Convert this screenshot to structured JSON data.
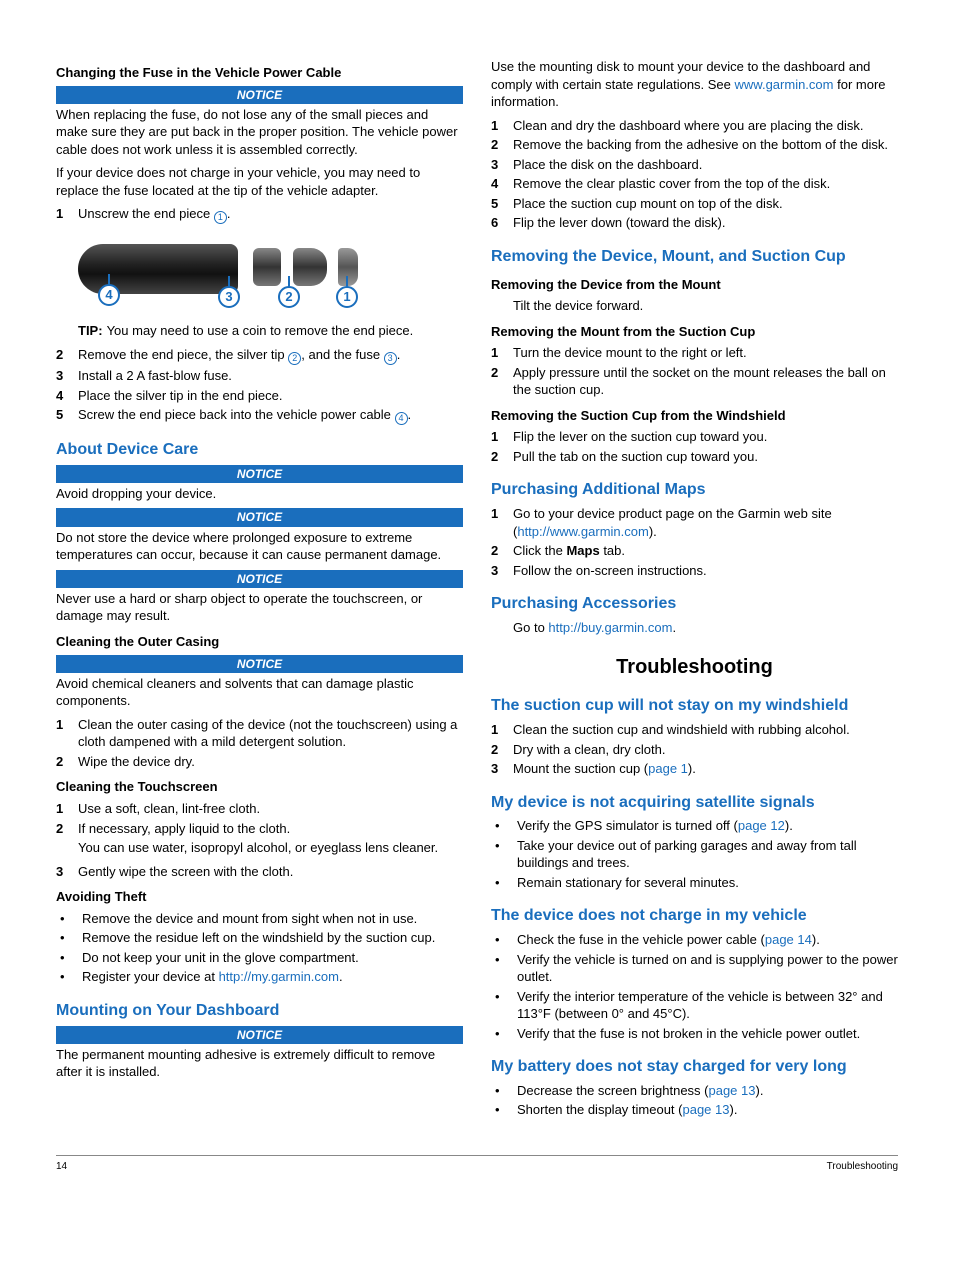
{
  "colors": {
    "accent": "#1a6ebd",
    "text": "#000000",
    "bg": "#ffffff"
  },
  "left": {
    "fuse": {
      "title": "Changing the Fuse in the Vehicle Power Cable",
      "notice_label": "NOTICE",
      "notice_text": "When replacing the fuse, do not lose any of the small pieces and make sure they are put back in the proper position. The vehicle power cable does not work unless it is assembled correctly.",
      "intro": "If your device does not charge in your vehicle, you may need to replace the fuse located at the tip of the vehicle adapter.",
      "step1": "Unscrew the end piece ",
      "tip_label": "TIP:",
      "tip_text": "You may need to use a coin to remove the end piece.",
      "step2a": "Remove the end piece, the silver tip ",
      "step2b": ", and the fuse ",
      "step3": "Install a 2 A fast-blow fuse.",
      "step4": "Place the silver tip in the end piece.",
      "step5a": "Screw the end piece back into the vehicle power cable "
    },
    "care": {
      "title": "About Device Care",
      "n1": "Avoid dropping your device.",
      "n2": "Do not store the device where prolonged exposure to extreme temperatures can occur, because it can cause permanent damage.",
      "n3": "Never use a hard or sharp object to operate the touchscreen, or damage may result."
    },
    "outer": {
      "title": "Cleaning the Outer Casing",
      "notice": "Avoid chemical cleaners and solvents that can damage plastic components.",
      "s1": "Clean the outer casing of the device (not the touchscreen) using a cloth dampened with a mild detergent solution.",
      "s2": "Wipe the device dry."
    },
    "touch": {
      "title": "Cleaning the Touchscreen",
      "s1": "Use a soft, clean, lint-free cloth.",
      "s2a": "If necessary, apply liquid to the cloth.",
      "s2b": "You can use water, isopropyl alcohol, or eyeglass lens cleaner.",
      "s3": "Gently wipe the screen with the cloth."
    },
    "theft": {
      "title": "Avoiding Theft",
      "b1": "Remove the device and mount from sight when not in use.",
      "b2": "Remove the residue left on the windshield by the suction cup.",
      "b3": "Do not keep your unit in the glove compartment.",
      "b4a": "Register your device at ",
      "b4link": "http://my.garmin.com"
    },
    "dash": {
      "title": "Mounting on Your Dashboard",
      "notice": "The permanent mounting adhesive is extremely difficult to remove after it is installed."
    }
  },
  "right": {
    "dash_cont": {
      "p1a": "Use the mounting disk to mount your device to the dashboard and comply with certain state regulations. See ",
      "p1link": "www.garmin.com",
      "p1b": " for more information.",
      "s1": "Clean and dry the dashboard where you are placing the disk.",
      "s2": "Remove the backing from the adhesive on the bottom of the disk.",
      "s3": "Place the disk on the dashboard.",
      "s4": "Remove the clear plastic cover from the top of the disk.",
      "s5": "Place the suction cup mount on top of the disk.",
      "s6": "Flip the lever down (toward the disk)."
    },
    "remove": {
      "title": "Removing the Device, Mount, and Suction Cup",
      "sub1": "Removing the Device from the Mount",
      "sub1t": "Tilt the device forward.",
      "sub2": "Removing the Mount from the Suction Cup",
      "sub2s1": "Turn the device mount to the right or left.",
      "sub2s2": "Apply pressure until the socket on the mount releases the ball on the suction cup.",
      "sub3": "Removing the Suction Cup from the Windshield",
      "sub3s1": "Flip the lever on the suction cup toward you.",
      "sub3s2": "Pull the tab on the suction cup toward you."
    },
    "maps": {
      "title": "Purchasing Additional Maps",
      "s1a": "Go to your device product page on the Garmin web site (",
      "s1link": "http://www.garmin.com",
      "s1b": ").",
      "s2a": "Click the ",
      "s2bold": "Maps",
      "s2b": " tab.",
      "s3": "Follow the on-screen instructions."
    },
    "acc": {
      "title": "Purchasing Accessories",
      "t1": "Go to ",
      "link": "http://buy.garmin.com",
      "t2": "."
    },
    "trouble": {
      "title": "Troubleshooting",
      "suction": {
        "title": "The suction cup will not stay on my windshield",
        "s1": "Clean the suction cup and windshield with rubbing alcohol.",
        "s2": "Dry with a clean, dry cloth.",
        "s3a": "Mount the suction cup (",
        "s3link": "page 1",
        "s3b": ")."
      },
      "sat": {
        "title": "My device is not acquiring satellite signals",
        "b1a": "Verify the GPS simulator is turned off (",
        "b1link": "page 12",
        "b1b": ").",
        "b2": "Take your device out of parking garages and away from tall buildings and trees.",
        "b3": "Remain stationary for several minutes."
      },
      "charge": {
        "title": "The device does not charge in my vehicle",
        "b1a": "Check the fuse in the vehicle power cable (",
        "b1link": "page 14",
        "b1b": ").",
        "b2": "Verify the vehicle is turned on and is supplying power to the power outlet.",
        "b3": "Verify the interior temperature of the vehicle is between 32° and 113°F (between 0° and 45°C).",
        "b4": "Verify that the fuse is not broken in the vehicle power outlet."
      },
      "batt": {
        "title": "My battery does not stay charged for very long",
        "b1a": "Decrease the screen brightness (",
        "b1link": "page 13",
        "b1b": ").",
        "b2a": "Shorten the display timeout (",
        "b2link": "page 13",
        "b2b": ")."
      }
    }
  },
  "footer": {
    "page": "14",
    "section": "Troubleshooting"
  },
  "notice_label": "NOTICE"
}
